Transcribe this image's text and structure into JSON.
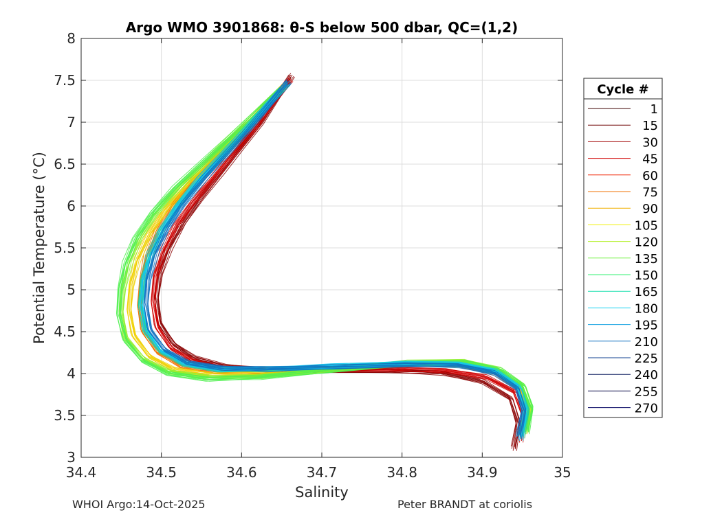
{
  "footer": {
    "left": "WHOI Argo:14-Oct-2025",
    "right": "Peter BRANDT at coriolis"
  },
  "chart_data": {
    "type": "line",
    "title": "Argo WMO 3901868: θ-S below 500 dbar,  QC=(1,2)",
    "xlabel": "Salinity",
    "ylabel": "Potential Temperature (°C)",
    "xlim": [
      34.4,
      35.0
    ],
    "ylim": [
      3.0,
      8.0
    ],
    "xticks": [
      "34.4",
      "34.5",
      "34.6",
      "34.7",
      "34.8",
      "34.9",
      "35"
    ],
    "yticks": [
      "3",
      "3.5",
      "4",
      "4.5",
      "5",
      "5.5",
      "6",
      "6.5",
      "7",
      "7.5",
      "8"
    ],
    "grid": true,
    "legend": {
      "title": "Cycle #",
      "placement": "outside-right",
      "entries": [
        {
          "label": "1",
          "color": "#3d0000"
        },
        {
          "label": "15",
          "color": "#6e0000"
        },
        {
          "label": "30",
          "color": "#a00000"
        },
        {
          "label": "45",
          "color": "#d00000"
        },
        {
          "label": "60",
          "color": "#f02000"
        },
        {
          "label": "75",
          "color": "#f07000"
        },
        {
          "label": "90",
          "color": "#f0b000"
        },
        {
          "label": "105",
          "color": "#f0f000"
        },
        {
          "label": "120",
          "color": "#b0f020"
        },
        {
          "label": "135",
          "color": "#70f040"
        },
        {
          "label": "150",
          "color": "#30f070"
        },
        {
          "label": "165",
          "color": "#20e0b0"
        },
        {
          "label": "180",
          "color": "#10d0f0"
        },
        {
          "label": "195",
          "color": "#10a0e0"
        },
        {
          "label": "210",
          "color": "#1070c0"
        },
        {
          "label": "225",
          "color": "#104090"
        },
        {
          "label": "240",
          "color": "#102060"
        },
        {
          "label": "255",
          "color": "#000040"
        },
        {
          "label": "270",
          "color": "#000060"
        }
      ]
    },
    "series": [
      {
        "color": "#8b0000",
        "x": [
          34.662,
          34.645,
          34.625,
          34.6,
          34.575,
          34.55,
          34.528,
          34.51,
          34.498,
          34.494,
          34.498,
          34.515,
          34.54,
          34.58,
          34.63,
          34.7,
          34.78,
          34.85,
          34.9,
          34.935,
          34.945,
          34.94
        ],
        "y": [
          7.55,
          7.3,
          7.0,
          6.7,
          6.4,
          6.1,
          5.8,
          5.5,
          5.2,
          4.9,
          4.6,
          4.35,
          4.18,
          4.08,
          4.04,
          4.03,
          4.03,
          4.0,
          3.9,
          3.7,
          3.4,
          3.1
        ]
      },
      {
        "color": "#d00000",
        "x": [
          34.66,
          34.64,
          34.618,
          34.592,
          34.566,
          34.54,
          34.518,
          34.502,
          34.492,
          34.49,
          34.495,
          34.512,
          34.538,
          34.575,
          34.625,
          34.7,
          34.785,
          34.855,
          34.905,
          34.94,
          34.952,
          34.948
        ],
        "y": [
          7.5,
          7.25,
          6.95,
          6.65,
          6.35,
          6.05,
          5.75,
          5.45,
          5.15,
          4.85,
          4.55,
          4.3,
          4.14,
          4.06,
          4.04,
          4.04,
          4.05,
          4.03,
          3.95,
          3.78,
          3.5,
          3.2
        ]
      },
      {
        "color": "#f07000",
        "x": [
          34.655,
          34.63,
          34.6,
          34.57,
          34.54,
          34.515,
          34.495,
          34.482,
          34.475,
          34.473,
          34.478,
          34.495,
          34.525,
          34.57,
          34.63,
          34.71,
          34.8,
          34.87,
          34.915,
          34.945,
          34.955,
          34.95
        ],
        "y": [
          7.45,
          7.2,
          6.9,
          6.6,
          6.3,
          6.0,
          5.7,
          5.4,
          5.1,
          4.8,
          4.5,
          4.25,
          4.08,
          4.02,
          4.01,
          4.05,
          4.1,
          4.1,
          4.0,
          3.82,
          3.55,
          3.25
        ]
      },
      {
        "color": "#f0d000",
        "x": [
          34.652,
          34.625,
          34.595,
          34.563,
          34.532,
          34.505,
          34.485,
          34.47,
          34.462,
          34.46,
          34.466,
          34.485,
          34.515,
          34.562,
          34.625,
          34.71,
          34.805,
          34.875,
          34.92,
          34.948,
          34.958,
          34.953
        ],
        "y": [
          7.42,
          7.15,
          6.85,
          6.55,
          6.25,
          5.95,
          5.65,
          5.35,
          5.05,
          4.75,
          4.45,
          4.2,
          4.04,
          3.98,
          3.98,
          4.05,
          4.12,
          4.12,
          4.02,
          3.84,
          3.58,
          3.3
        ]
      },
      {
        "color": "#90f030",
        "x": [
          34.65,
          34.62,
          34.588,
          34.555,
          34.522,
          34.494,
          34.474,
          34.46,
          34.452,
          34.45,
          34.456,
          34.478,
          34.51,
          34.56,
          34.625,
          34.712,
          34.808,
          34.878,
          34.922,
          34.95,
          34.96,
          34.955
        ],
        "y": [
          7.4,
          7.12,
          6.82,
          6.52,
          6.22,
          5.92,
          5.62,
          5.32,
          5.02,
          4.72,
          4.42,
          4.17,
          4.01,
          3.95,
          3.96,
          4.04,
          4.13,
          4.14,
          4.04,
          3.86,
          3.6,
          3.32
        ]
      },
      {
        "color": "#50f050",
        "x": [
          34.648,
          34.618,
          34.585,
          34.55,
          34.516,
          34.488,
          34.468,
          34.455,
          34.448,
          34.447,
          34.455,
          34.476,
          34.508,
          34.558,
          34.624,
          34.712,
          34.81,
          34.88,
          34.924,
          34.951,
          34.961,
          34.956
        ],
        "y": [
          7.38,
          7.1,
          6.8,
          6.5,
          6.2,
          5.9,
          5.6,
          5.3,
          5.0,
          4.7,
          4.4,
          4.15,
          3.99,
          3.93,
          3.95,
          4.03,
          4.12,
          4.13,
          4.03,
          3.85,
          3.58,
          3.3
        ]
      },
      {
        "color": "#20d0a0",
        "x": [
          34.656,
          34.632,
          34.605,
          34.576,
          34.546,
          34.52,
          34.5,
          34.485,
          34.476,
          34.474,
          34.48,
          34.498,
          34.528,
          34.572,
          34.632,
          34.712,
          34.805,
          34.872,
          34.918,
          34.946,
          34.956,
          34.95
        ],
        "y": [
          7.45,
          7.2,
          6.9,
          6.6,
          6.3,
          6.0,
          5.7,
          5.4,
          5.1,
          4.8,
          4.5,
          4.26,
          4.1,
          4.04,
          4.04,
          4.07,
          4.11,
          4.1,
          4.01,
          3.82,
          3.55,
          3.25
        ]
      },
      {
        "color": "#10c8f0",
        "x": [
          34.657,
          34.634,
          34.607,
          34.578,
          34.548,
          34.522,
          34.502,
          34.487,
          34.478,
          34.476,
          34.482,
          34.5,
          34.53,
          34.574,
          34.634,
          34.714,
          34.806,
          34.872,
          34.917,
          34.945,
          34.954,
          34.948
        ],
        "y": [
          7.46,
          7.21,
          6.91,
          6.61,
          6.31,
          6.01,
          5.71,
          5.41,
          5.11,
          4.81,
          4.51,
          4.27,
          4.11,
          4.05,
          4.05,
          4.08,
          4.12,
          4.11,
          4.02,
          3.84,
          3.56,
          3.22
        ]
      },
      {
        "color": "#1070c0",
        "x": [
          34.658,
          34.636,
          34.61,
          34.582,
          34.553,
          34.527,
          34.507,
          34.492,
          34.483,
          34.481,
          34.486,
          34.504,
          34.533,
          34.577,
          34.636,
          34.715,
          34.805,
          34.87,
          34.915,
          34.943,
          34.952,
          34.946
        ],
        "y": [
          7.48,
          7.22,
          6.92,
          6.62,
          6.32,
          6.02,
          5.72,
          5.42,
          5.12,
          4.82,
          4.52,
          4.28,
          4.12,
          4.06,
          4.05,
          4.07,
          4.1,
          4.09,
          4.0,
          3.82,
          3.55,
          3.24
        ]
      }
    ]
  }
}
